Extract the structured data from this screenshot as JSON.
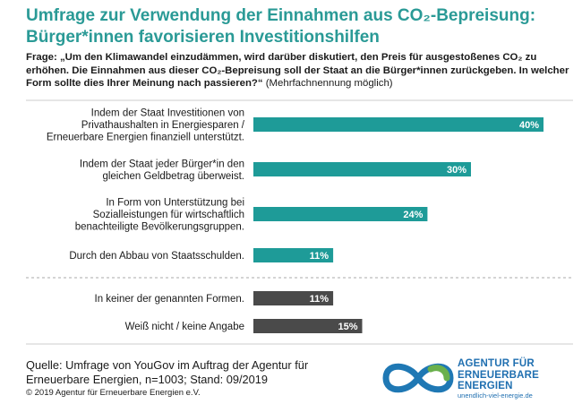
{
  "title": "Umfrage zur Verwendung der Einnahmen aus CO₂-Bepreisung: Bürger*innen favorisieren Investitionshilfen",
  "question": {
    "bold": "Frage: „Um den Klimawandel einzudämmen, wird darüber diskutiert, den Preis für ausgestoßenes CO₂ zu erhöhen. Die Einnahmen aus dieser CO₂-Bepreisung soll der Staat an die Bürger*innen zurückgeben. In welcher Form sollte dies Ihrer Meinung nach passieren?“",
    "note": " (Mehrfachnennung möglich)"
  },
  "colors": {
    "teal": "#1e9b98",
    "gray": "#4a4a4a",
    "divider": "#aaaaaa"
  },
  "chart_data": {
    "type": "bar",
    "orientation": "horizontal",
    "unit": "%",
    "xlim": [
      0,
      40
    ],
    "categories": [
      "Indem der Staat Investitionen von Privathaushalten in Energiesparen / Erneuerbare Energien finanziell unterstützt.",
      "Indem der Staat jeder Bürger*in den gleichen Geldbetrag überweist.",
      "In Form von Unterstützung bei Sozialleistungen für wirtschaftlich benachteiligte Bevölkerungsgruppen.",
      "Durch den Abbau von Staatsschulden.",
      "In keiner der genannten Formen.",
      "Weiß nicht / keine Angabe"
    ],
    "label_lines": [
      [
        "Indem der Staat Investitionen von",
        "Privathaushalten in Energiesparen /",
        "Erneuerbare Energien finanziell unterstützt."
      ],
      [
        "Indem der Staat jeder Bürger*in den",
        "gleichen Geldbetrag überweist."
      ],
      [
        "In Form von Unterstützung bei",
        "Sozialleistungen für wirtschaftlich",
        "benachteiligte Bevölkerungsgruppen."
      ],
      [
        "Durch den Abbau von Staatsschulden."
      ],
      [
        "In keiner der genannten Formen."
      ],
      [
        "Weiß nicht / keine Angabe"
      ]
    ],
    "values": [
      40,
      30,
      24,
      11,
      11,
      15
    ],
    "value_labels": [
      "40%",
      "30%",
      "24%",
      "11%",
      "11%",
      "15%"
    ],
    "groups": [
      "teal",
      "teal",
      "teal",
      "teal",
      "gray",
      "gray"
    ]
  },
  "source": "Quelle: Umfrage von YouGov im Auftrag der Agentur für Erneuerbare Energien, n=1003; Stand: 09/2019",
  "copyright": "© 2019 Agentur für Erneuerbare Energien e.V.",
  "logo": {
    "line1": "AGENTUR FÜR",
    "line2": "ERNEUERBARE",
    "line3": "ENERGIEN",
    "url": "unendlich-viel-energie.de"
  }
}
